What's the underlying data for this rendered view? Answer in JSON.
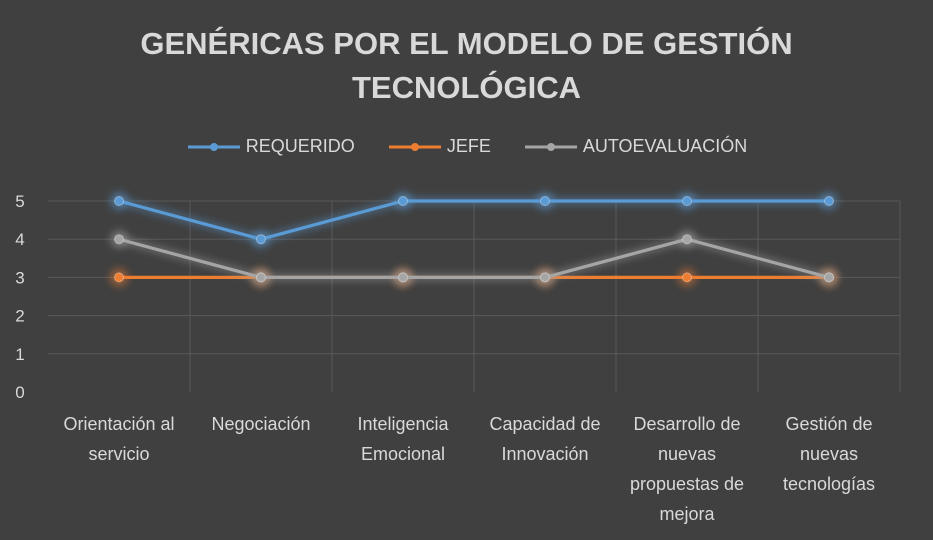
{
  "chart_data": {
    "type": "line",
    "title_lines": [
      "GENÉRICAS POR EL MODELO DE GESTIÓN",
      "TECNOLÓGICA"
    ],
    "categories": [
      [
        "Orientación al",
        "servicio"
      ],
      [
        "Negociación"
      ],
      [
        "Inteligencia",
        "Emocional"
      ],
      [
        "Capacidad de",
        "Innovación"
      ],
      [
        "Desarrollo de",
        "nuevas",
        "propuestas de",
        "mejora"
      ],
      [
        "Gestión de",
        "nuevas",
        "tecnologías"
      ]
    ],
    "series": [
      {
        "name": "REQUERIDO",
        "color": "#5b9bd5",
        "values": [
          5,
          4,
          5,
          5,
          5,
          5
        ]
      },
      {
        "name": "JEFE",
        "color": "#ed7d31",
        "values": [
          3,
          3,
          3,
          3,
          3,
          3
        ]
      },
      {
        "name": "AUTOEVALUACIÓN",
        "color": "#a5a5a5",
        "values": [
          4,
          3,
          3,
          3,
          4,
          3
        ]
      }
    ],
    "y_ticks": [
      "0",
      "1",
      "2",
      "3",
      "4",
      "5"
    ],
    "ylim": [
      0,
      5
    ],
    "grid": true,
    "legend_position": "top",
    "background": "#404040",
    "text_color": "#d9d9d9",
    "grid_color": "#595959"
  }
}
